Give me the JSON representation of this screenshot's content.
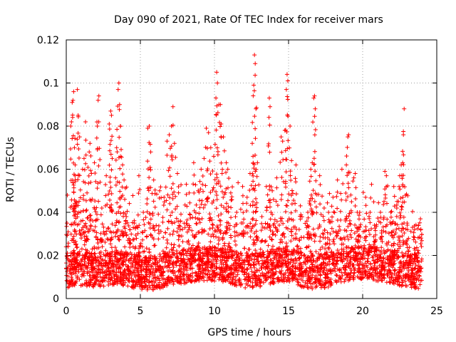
{
  "chart_data": {
    "type": "scatter",
    "title": "Day 090 of 2021, Rate Of TEC Index for receiver mars",
    "xlabel": "GPS time / hours",
    "ylabel": "ROTI / TECUs",
    "xlim": [
      0,
      25
    ],
    "ylim": [
      0,
      0.12
    ],
    "x_ticks": [
      0,
      5,
      10,
      15,
      20,
      25
    ],
    "y_ticks": [
      0,
      0.02,
      0.04,
      0.06,
      0.08,
      0.1,
      0.12
    ],
    "x_tick_labels": [
      "0",
      "5",
      "10",
      "15",
      "20",
      "25"
    ],
    "y_tick_labels": [
      "0",
      "0.02",
      "0.04",
      "0.06",
      "0.08",
      "0.1",
      "0.12"
    ],
    "grid": true,
    "marker": "+",
    "color": "#ff0000",
    "x_range_of_data": [
      0,
      24
    ],
    "series": [
      {
        "name": "ROTI",
        "points": [
          [
            0.05,
            0.035
          ],
          [
            0.35,
            0.082
          ],
          [
            0.4,
            0.091
          ],
          [
            0.45,
            0.092
          ],
          [
            0.5,
            0.096
          ],
          [
            0.55,
            0.07
          ],
          [
            0.6,
            0.062
          ],
          [
            0.6,
            0.055
          ],
          [
            0.65,
            0.045
          ],
          [
            0.75,
            0.097
          ],
          [
            0.8,
            0.085
          ],
          [
            0.9,
            0.075
          ],
          [
            1.1,
            0.06
          ],
          [
            1.2,
            0.065
          ],
          [
            1.3,
            0.082
          ],
          [
            1.4,
            0.049
          ],
          [
            1.55,
            0.068
          ],
          [
            1.6,
            0.072
          ],
          [
            1.7,
            0.058
          ],
          [
            1.9,
            0.063
          ],
          [
            2.1,
            0.08
          ],
          [
            2.15,
            0.092
          ],
          [
            2.2,
            0.094
          ],
          [
            2.4,
            0.042
          ],
          [
            2.7,
            0.057
          ],
          [
            2.9,
            0.081
          ],
          [
            3.0,
            0.087
          ],
          [
            3.05,
            0.085
          ],
          [
            3.1,
            0.065
          ],
          [
            3.4,
            0.07
          ],
          [
            3.5,
            0.097
          ],
          [
            3.55,
            0.1
          ],
          [
            3.6,
            0.09
          ],
          [
            3.65,
            0.08
          ],
          [
            3.8,
            0.062
          ],
          [
            3.9,
            0.055
          ],
          [
            4.05,
            0.038
          ],
          [
            4.3,
            0.032
          ],
          [
            4.6,
            0.035
          ],
          [
            4.9,
            0.057
          ],
          [
            5.2,
            0.04
          ],
          [
            5.5,
            0.079
          ],
          [
            5.6,
            0.08
          ],
          [
            5.7,
            0.068
          ],
          [
            5.9,
            0.055
          ],
          [
            6.3,
            0.05
          ],
          [
            6.6,
            0.047
          ],
          [
            6.8,
            0.073
          ],
          [
            6.95,
            0.076
          ],
          [
            7.1,
            0.08
          ],
          [
            7.2,
            0.089
          ],
          [
            7.3,
            0.072
          ],
          [
            7.5,
            0.058
          ],
          [
            7.7,
            0.036
          ],
          [
            8.1,
            0.053
          ],
          [
            8.3,
            0.049
          ],
          [
            8.6,
            0.063
          ],
          [
            8.9,
            0.05
          ],
          [
            9.1,
            0.06
          ],
          [
            9.3,
            0.065
          ],
          [
            9.45,
            0.079
          ],
          [
            9.6,
            0.077
          ],
          [
            9.75,
            0.07
          ],
          [
            9.95,
            0.066
          ],
          [
            10.1,
            0.093
          ],
          [
            10.15,
            0.105
          ],
          [
            10.2,
            0.1
          ],
          [
            10.3,
            0.09
          ],
          [
            10.4,
            0.09
          ],
          [
            10.45,
            0.081
          ],
          [
            10.6,
            0.075
          ],
          [
            10.8,
            0.063
          ],
          [
            10.9,
            0.06
          ],
          [
            11.1,
            0.049
          ],
          [
            11.5,
            0.04
          ],
          [
            11.9,
            0.052
          ],
          [
            12.2,
            0.047
          ],
          [
            12.4,
            0.058
          ],
          [
            12.55,
            0.072
          ],
          [
            12.6,
            0.066
          ],
          [
            12.65,
            0.099
          ],
          [
            12.7,
            0.113
          ],
          [
            12.75,
            0.109
          ],
          [
            12.8,
            0.088
          ],
          [
            12.9,
            0.063
          ],
          [
            13.2,
            0.038
          ],
          [
            13.5,
            0.052
          ],
          [
            13.7,
            0.093
          ],
          [
            13.75,
            0.089
          ],
          [
            13.9,
            0.05
          ],
          [
            14.2,
            0.056
          ],
          [
            14.5,
            0.075
          ],
          [
            14.6,
            0.073
          ],
          [
            14.75,
            0.078
          ],
          [
            14.85,
            0.097
          ],
          [
            14.9,
            0.104
          ],
          [
            14.95,
            0.101
          ],
          [
            15.1,
            0.08
          ],
          [
            15.2,
            0.064
          ],
          [
            15.5,
            0.062
          ],
          [
            15.8,
            0.043
          ],
          [
            16.3,
            0.04
          ],
          [
            16.5,
            0.06
          ],
          [
            16.6,
            0.063
          ],
          [
            16.7,
            0.093
          ],
          [
            16.75,
            0.094
          ],
          [
            16.8,
            0.088
          ],
          [
            17.1,
            0.057
          ],
          [
            17.4,
            0.042
          ],
          [
            17.7,
            0.04
          ],
          [
            18.0,
            0.047
          ],
          [
            18.3,
            0.055
          ],
          [
            18.6,
            0.06
          ],
          [
            18.9,
            0.062
          ],
          [
            19.0,
            0.075
          ],
          [
            19.05,
            0.076
          ],
          [
            19.2,
            0.048
          ],
          [
            19.5,
            0.058
          ],
          [
            19.8,
            0.04
          ],
          [
            20.2,
            0.047
          ],
          [
            20.5,
            0.04
          ],
          [
            20.8,
            0.034
          ],
          [
            21.2,
            0.04
          ],
          [
            21.5,
            0.059
          ],
          [
            21.6,
            0.057
          ],
          [
            21.9,
            0.04
          ],
          [
            22.1,
            0.052
          ],
          [
            22.3,
            0.042
          ],
          [
            22.5,
            0.057
          ],
          [
            22.6,
            0.062
          ],
          [
            22.7,
            0.063
          ],
          [
            22.75,
            0.076
          ],
          [
            22.8,
            0.088
          ],
          [
            23.0,
            0.035
          ],
          [
            23.5,
            0.032
          ],
          [
            23.9,
            0.037
          ]
        ],
        "baseline_profile": [
          [
            0.0,
            0.013
          ],
          [
            1.0,
            0.014
          ],
          [
            2.0,
            0.013
          ],
          [
            3.0,
            0.014
          ],
          [
            4.0,
            0.014
          ],
          [
            5.0,
            0.012
          ],
          [
            6.0,
            0.012
          ],
          [
            7.0,
            0.014
          ],
          [
            8.0,
            0.015
          ],
          [
            9.0,
            0.016
          ],
          [
            10.0,
            0.016
          ],
          [
            11.0,
            0.015
          ],
          [
            12.0,
            0.013
          ],
          [
            13.0,
            0.013
          ],
          [
            14.0,
            0.015
          ],
          [
            15.0,
            0.016
          ],
          [
            16.0,
            0.013
          ],
          [
            17.0,
            0.012
          ],
          [
            18.0,
            0.014
          ],
          [
            19.0,
            0.016
          ],
          [
            20.0,
            0.017
          ],
          [
            21.0,
            0.016
          ],
          [
            22.0,
            0.015
          ],
          [
            23.0,
            0.013
          ],
          [
            24.0,
            0.012
          ]
        ]
      }
    ]
  }
}
